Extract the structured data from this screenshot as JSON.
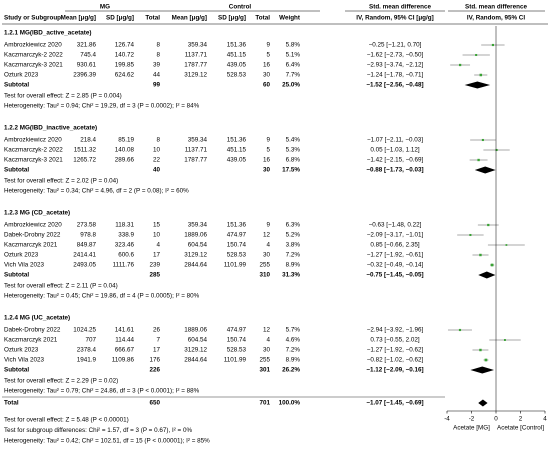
{
  "chart_data": {
    "type": "forest",
    "headers": {
      "study": "Study or Subgroup",
      "group1": "MG",
      "group2": "Control",
      "mean": "Mean [μg/g]",
      "sd": "SD [μg/g]",
      "total": "Total",
      "weight": "Weight",
      "smd_title": "Std. mean difference",
      "smd_sub": "IV, Random, 95% CI [μg/g]",
      "plot_title": "Std. mean difference",
      "plot_sub": "IV, Random, 95% CI"
    },
    "groups": [
      {
        "title": "1.2.1 MG(IBD_active_acetate)",
        "studies": [
          {
            "name": "Ambrozkiewicz 2020",
            "mg": [
              321.86,
              126.74,
              8
            ],
            "ctrl": [
              359.34,
              151.36,
              9
            ],
            "weight": 5.8,
            "weight_label": "5.8%",
            "est": -0.25,
            "ci": [
              -1.21,
              0.7
            ],
            "ci_label": "−0.25 [−1.21, 0.70]"
          },
          {
            "name": "Kaczmarczyk-2 2022",
            "mg": [
              745.4,
              140.72,
              8
            ],
            "ctrl": [
              1137.71,
              451.15,
              5
            ],
            "weight": 5.1,
            "weight_label": "5.1%",
            "est": -1.62,
            "ci": [
              -2.73,
              -0.5
            ],
            "ci_label": "−1.62 [−2.73, −0.50]"
          },
          {
            "name": "Kaczmarczyk-3 2021",
            "mg": [
              930.61,
              199.85,
              39
            ],
            "ctrl": [
              1787.77,
              439.05,
              16
            ],
            "weight": 6.4,
            "weight_label": "6.4%",
            "est": -2.93,
            "ci": [
              -3.74,
              -2.12
            ],
            "ci_label": "−2.93 [−3.74, −2.12]"
          },
          {
            "name": "Ozturk 2023",
            "mg": [
              2396.39,
              624.62,
              44
            ],
            "ctrl": [
              3129.12,
              528.53,
              30
            ],
            "weight": 7.7,
            "weight_label": "7.7%",
            "est": -1.24,
            "ci": [
              -1.78,
              -0.71
            ],
            "ci_label": "−1.24 [−1.78, −0.71]"
          }
        ],
        "subtotal": {
          "label": "Subtotal",
          "mg_total": 99,
          "ctrl_total": 60,
          "weight": 25.0,
          "weight_label": "25.0%",
          "est": -1.52,
          "ci": [
            -2.56,
            -0.48
          ],
          "ci_label": "−1.52 [−2.56, −0.48]"
        },
        "test": "Test for overall effect: Z = 2.85 (P = 0.004)",
        "heterogeneity": "Heterogeneity: Tau² = 0.94; Chi² = 19.29, df = 3 (P = 0.0002); I² = 84%"
      },
      {
        "title": "1.2.2 MG(IBD_inactive_acetate)",
        "studies": [
          {
            "name": "Ambrozkiewicz 2020",
            "mg": [
              218.4,
              85.19,
              8
            ],
            "ctrl": [
              359.34,
              151.36,
              9
            ],
            "weight": 5.4,
            "weight_label": "5.4%",
            "est": -1.07,
            "ci": [
              -2.11,
              -0.03
            ],
            "ci_label": "−1.07 [−2.11, −0.03]"
          },
          {
            "name": "Kaczmarczyk-2 2022",
            "mg": [
              1511.32,
              140.08,
              10
            ],
            "ctrl": [
              1137.71,
              451.15,
              5
            ],
            "weight": 5.3,
            "weight_label": "5.3%",
            "est": 0.05,
            "ci": [
              -1.03,
              1.12
            ],
            "ci_label": "0.05 [−1.03, 1.12]"
          },
          {
            "name": "Kaczmarczyk-3 2021",
            "mg": [
              1265.72,
              289.66,
              22
            ],
            "ctrl": [
              1787.77,
              439.05,
              16
            ],
            "weight": 6.8,
            "weight_label": "6.8%",
            "est": -1.42,
            "ci": [
              -2.15,
              -0.69
            ],
            "ci_label": "−1.42 [−2.15, −0.69]"
          }
        ],
        "subtotal": {
          "label": "Subtotal",
          "mg_total": 40,
          "ctrl_total": 30,
          "weight": 17.5,
          "weight_label": "17.5%",
          "est": -0.88,
          "ci": [
            -1.73,
            -0.03
          ],
          "ci_label": "−0.88 [−1.73, −0.03]"
        },
        "test": "Test for overall effect: Z = 2.02 (P = 0.04)",
        "heterogeneity": "Heterogeneity: Tau² = 0.34; Chi² = 4.96, df = 2 (P = 0.08); I² = 60%"
      },
      {
        "title": "1.2.3 MG (CD_acetate)",
        "studies": [
          {
            "name": "Ambrozkiewicz 2020",
            "mg": [
              273.58,
              118.31,
              15
            ],
            "ctrl": [
              359.34,
              151.36,
              9
            ],
            "weight": 6.3,
            "weight_label": "6.3%",
            "est": -0.63,
            "ci": [
              -1.48,
              0.22
            ],
            "ci_label": "−0.63 [−1.48, 0.22]"
          },
          {
            "name": "Dabek-Drobny 2022",
            "mg": [
              978.8,
              338.9,
              10
            ],
            "ctrl": [
              1889.06,
              474.97,
              12
            ],
            "weight": 5.2,
            "weight_label": "5.2%",
            "est": -2.09,
            "ci": [
              -3.17,
              -1.01
            ],
            "ci_label": "−2.09 [−3.17, −1.01]"
          },
          {
            "name": "Kaczmarczyk 2021",
            "mg": [
              849.87,
              323.46,
              4
            ],
            "ctrl": [
              604.54,
              150.74,
              4
            ],
            "weight": 3.8,
            "weight_label": "3.8%",
            "est": 0.85,
            "ci": [
              -0.66,
              2.35
            ],
            "ci_label": "0.85 [−0.66, 2.35]"
          },
          {
            "name": "Ozturk 2023",
            "mg": [
              2414.41,
              600.6,
              17
            ],
            "ctrl": [
              3129.12,
              528.53,
              30
            ],
            "weight": 7.2,
            "weight_label": "7.2%",
            "est": -1.27,
            "ci": [
              -1.92,
              -0.61
            ],
            "ci_label": "−1.27 [−1.92, −0.61]"
          },
          {
            "name": "Vich Vila 2023",
            "mg": [
              2493.05,
              1111.76,
              239
            ],
            "ctrl": [
              2844.64,
              1101.99,
              255
            ],
            "weight": 8.9,
            "weight_label": "8.9%",
            "est": -0.32,
            "ci": [
              -0.49,
              -0.14
            ],
            "ci_label": "−0.32 [−0.49, −0.14]"
          }
        ],
        "subtotal": {
          "label": "Subtotal",
          "mg_total": 285,
          "ctrl_total": 310,
          "weight": 31.3,
          "weight_label": "31.3%",
          "est": -0.75,
          "ci": [
            -1.45,
            -0.05
          ],
          "ci_label": "−0.75 [−1.45, −0.05]"
        },
        "test": "Test for overall effect: Z = 2.11 (P = 0.04)",
        "heterogeneity": "Heterogeneity: Tau² = 0.45; Chi² = 19.86, df = 4 (P = 0.0005); I² = 80%"
      },
      {
        "title": "1.2.4 MG (UC_acetate)",
        "studies": [
          {
            "name": "Dabek-Drobny 2022",
            "mg": [
              1024.25,
              141.61,
              26
            ],
            "ctrl": [
              1889.06,
              474.97,
              12
            ],
            "weight": 5.7,
            "weight_label": "5.7%",
            "est": -2.94,
            "ci": [
              -3.92,
              -1.96
            ],
            "ci_label": "−2.94 [−3.92, −1.96]"
          },
          {
            "name": "Kaczmarczyk 2021",
            "mg": [
              707,
              114.44,
              7
            ],
            "ctrl": [
              604.54,
              150.74,
              4
            ],
            "weight": 4.6,
            "weight_label": "4.6%",
            "est": 0.73,
            "ci": [
              -0.55,
              2.02
            ],
            "ci_label": "0.73 [−0.55, 2.02]"
          },
          {
            "name": "Ozturk 2023",
            "mg": [
              2378.4,
              666.67,
              17
            ],
            "ctrl": [
              3129.12,
              528.53,
              30
            ],
            "weight": 7.2,
            "weight_label": "7.2%",
            "est": -1.27,
            "ci": [
              -1.92,
              -0.62
            ],
            "ci_label": "−1.27 [−1.92, −0.62]"
          },
          {
            "name": "Vich Vila 2023",
            "mg": [
              1941.9,
              1109.86,
              176
            ],
            "ctrl": [
              2844.64,
              1101.99,
              255
            ],
            "weight": 8.9,
            "weight_label": "8.9%",
            "est": -0.82,
            "ci": [
              -1.02,
              -0.62
            ],
            "ci_label": "−0.82 [−1.02, −0.62]"
          }
        ],
        "subtotal": {
          "label": "Subtotal",
          "mg_total": 226,
          "ctrl_total": 301,
          "weight": 26.2,
          "weight_label": "26.2%",
          "est": -1.12,
          "ci": [
            -2.09,
            -0.16
          ],
          "ci_label": "−1.12 [−2.09, −0.16]"
        },
        "test": "Test for overall effect: Z = 2.29 (P = 0.02)",
        "heterogeneity": "Heterogeneity: Tau² = 0.79; Chi² = 24.86, df = 3 (P < 0.0001); I² = 88%"
      }
    ],
    "overall": {
      "label": "Total",
      "mg_total": 650,
      "ctrl_total": 701,
      "weight": 100.0,
      "weight_label": "100.0%",
      "est": -1.07,
      "ci": [
        -1.45,
        -0.69
      ],
      "ci_label": "−1.07 [−1.45, −0.69]"
    },
    "footer": [
      "Test for overall effect: Z = 5.48 (P < 0.00001)",
      "Test for subgroup differences: Chi² = 1.57, df = 3 (P = 0.67), I² = 0%",
      "Heterogeneity: Tau² = 0.42; Chi² = 102.51, df = 15 (P < 0.00001); I² = 85%"
    ],
    "xlim": [
      -4,
      4
    ],
    "xticks": [
      -4,
      -2,
      0,
      2,
      4
    ],
    "xlabel_left": "Acetate [MG]",
    "xlabel_right": "Acetate [Control]",
    "point_color": "#3aa335",
    "diamond_color": "#000000"
  }
}
